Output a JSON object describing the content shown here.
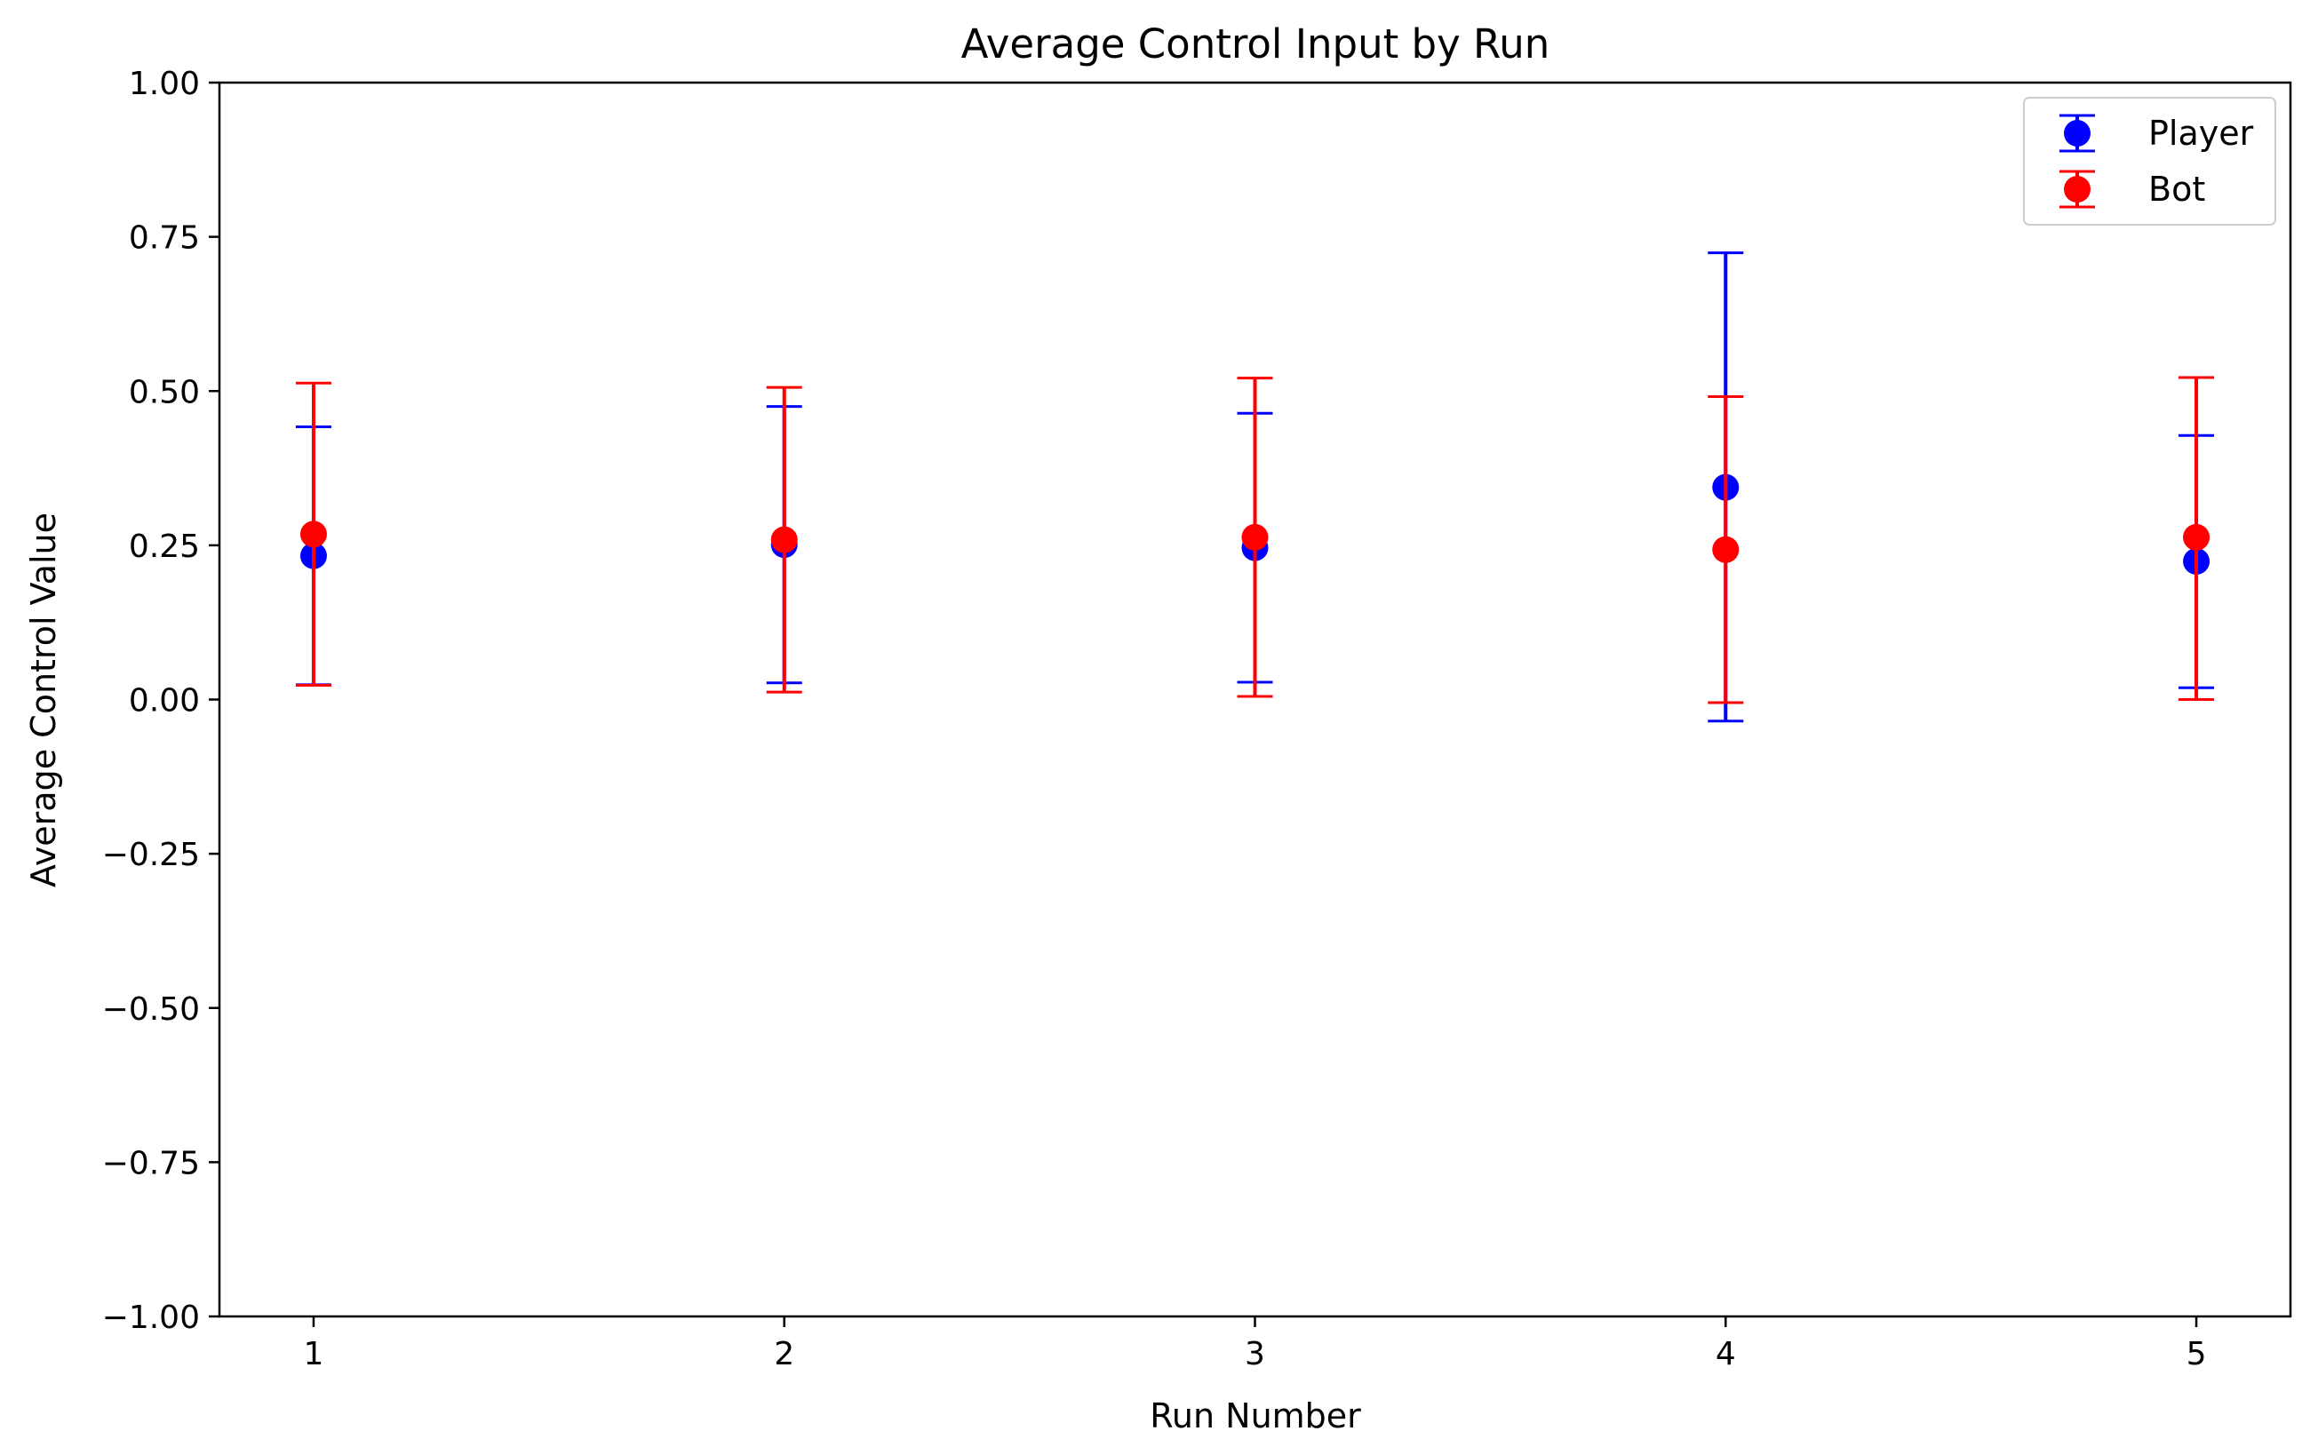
{
  "chart_data": {
    "type": "scatter",
    "variant": "errorbar",
    "title": "Average Control Input by Run",
    "xlabel": "Run Number",
    "ylabel": "Average Control Value",
    "xlim": [
      0.8,
      5.2
    ],
    "ylim": [
      -1.0,
      1.0
    ],
    "x_ticks": [
      1,
      2,
      3,
      4,
      5
    ],
    "x_tick_labels": [
      "1",
      "2",
      "3",
      "4",
      "5"
    ],
    "y_ticks": [
      -1.0,
      -0.75,
      -0.5,
      -0.25,
      0.0,
      0.25,
      0.5,
      0.75,
      1.0
    ],
    "y_tick_labels": [
      "−1.00",
      "−0.75",
      "−0.50",
      "−0.25",
      "0.00",
      "0.25",
      "0.50",
      "0.75",
      "1.00"
    ],
    "grid": false,
    "legend_position": "top-right",
    "series": [
      {
        "name": "Player",
        "color": "#0000ff",
        "x": [
          1,
          2,
          3,
          4,
          5
        ],
        "y": [
          0.233,
          0.251,
          0.246,
          0.344,
          0.224
        ],
        "err_low": [
          0.024,
          0.027,
          0.028,
          -0.035,
          0.019
        ],
        "err_high": [
          0.442,
          0.475,
          0.464,
          0.724,
          0.428
        ]
      },
      {
        "name": "Bot",
        "color": "#ff0000",
        "x": [
          1,
          2,
          3,
          4,
          5
        ],
        "y": [
          0.268,
          0.259,
          0.263,
          0.243,
          0.263
        ],
        "err_low": [
          0.023,
          0.012,
          0.005,
          -0.005,
          0.0
        ],
        "err_high": [
          0.513,
          0.506,
          0.521,
          0.491,
          0.522
        ]
      }
    ]
  }
}
